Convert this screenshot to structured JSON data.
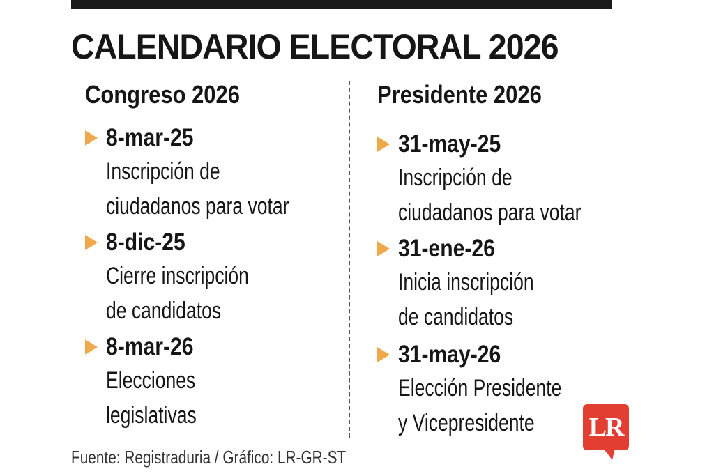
{
  "title": "CALENDARIO ELECTORAL 2026",
  "columns": [
    {
      "heading": "Congreso 2026",
      "events": [
        {
          "date": "8-mar-25",
          "lines": [
            "Inscripción de",
            "ciudadanos para votar"
          ]
        },
        {
          "date": "8-dic-25",
          "lines": [
            "Cierre inscripción",
            "de candidatos"
          ]
        },
        {
          "date": "8-mar-26",
          "lines": [
            "Elecciones",
            "legislativas"
          ]
        }
      ]
    },
    {
      "heading": "Presidente 2026",
      "events": [
        {
          "date": "31-may-25",
          "lines": [
            "Inscripción de",
            "ciudadanos para votar"
          ]
        },
        {
          "date": "31-ene-26",
          "lines": [
            "Inicia inscripción",
            "de candidatos"
          ]
        },
        {
          "date": "31-may-26",
          "lines": [
            "Elección Presidente",
            "y Vicepresidente"
          ]
        }
      ]
    }
  ],
  "source": "Fuente: Registraduria / Gráfico: LR-GR-ST",
  "logo": {
    "text": "LR",
    "color": "#e23f32"
  },
  "colors": {
    "arrow": "#f0a94a",
    "text": "#161616",
    "bar": "#1a1a1a"
  },
  "icons": {
    "bullet": "triangle-right-icon"
  }
}
